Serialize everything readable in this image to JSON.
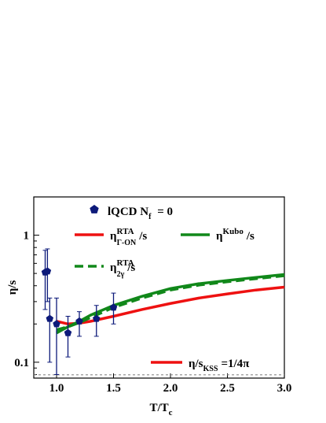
{
  "chart_data": {
    "type": "line",
    "xlabel": "T/T",
    "xlabel_sub": "c",
    "ylabel": "η/s",
    "xlim": [
      0.8,
      3.0
    ],
    "ylim": [
      0.075,
      2
    ],
    "log_y": true,
    "xticks": [
      {
        "value": 1,
        "label": "1.0"
      },
      1.5,
      {
        "value": 2,
        "label": "2.0"
      },
      2.5,
      {
        "value": 3,
        "label": "3.0"
      }
    ],
    "yticks": [
      0.1,
      1
    ],
    "yminorticks": [
      0.08,
      0.09,
      0.2,
      0.3,
      0.4,
      0.5,
      0.6,
      0.7,
      0.8,
      0.9,
      2
    ],
    "x": [
      1.0,
      1.05,
      1.1,
      1.2,
      1.3,
      1.5,
      1.75,
      2.0,
      2.25,
      2.5,
      2.75,
      3.0
    ],
    "series": [
      {
        "name": "η",
        "name_sup": "RTA",
        "name_sub": "Γ-ON",
        "name_after": "/s",
        "color": "#ee1111",
        "dashed": false,
        "values": [
          0.21,
          0.205,
          0.2,
          0.203,
          0.21,
          0.23,
          0.26,
          0.29,
          0.32,
          0.345,
          0.37,
          0.39
        ]
      },
      {
        "name": "η",
        "name_sup": "Kubo",
        "name_after": "/s",
        "color": "#11881a",
        "dashed": false,
        "values": [
          0.17,
          0.18,
          0.19,
          0.21,
          0.235,
          0.28,
          0.33,
          0.38,
          0.415,
          0.44,
          0.465,
          0.49
        ]
      },
      {
        "name": "η",
        "name_sup": "RTA",
        "name_sub": "2γ",
        "name_after": "/s",
        "color": "#11881a",
        "dashed": true,
        "values": [
          0.18,
          0.185,
          0.19,
          0.205,
          0.225,
          0.27,
          0.32,
          0.37,
          0.405,
          0.43,
          0.455,
          0.48
        ]
      }
    ],
    "points": {
      "name": "lQCD N",
      "name_sub": "f",
      "name_after": " = 0",
      "color": "#0d1a7a",
      "x": [
        0.9,
        0.92,
        0.94,
        1.0,
        1.1,
        1.2,
        1.35,
        1.5
      ],
      "y": [
        0.51,
        0.52,
        0.22,
        0.2,
        0.17,
        0.21,
        0.22,
        0.27
      ],
      "ylow": [
        0.26,
        0.3,
        0.1,
        0.08,
        0.11,
        0.16,
        0.16,
        0.2
      ],
      "yhigh": [
        0.76,
        0.78,
        0.32,
        0.32,
        0.23,
        0.25,
        0.28,
        0.35
      ]
    },
    "kss": {
      "name": "η/s",
      "name_sub": "KSS",
      "name_after": "=1/4π",
      "value": 0.0796,
      "color": "#888888",
      "legend_color": "#ee1111"
    }
  }
}
